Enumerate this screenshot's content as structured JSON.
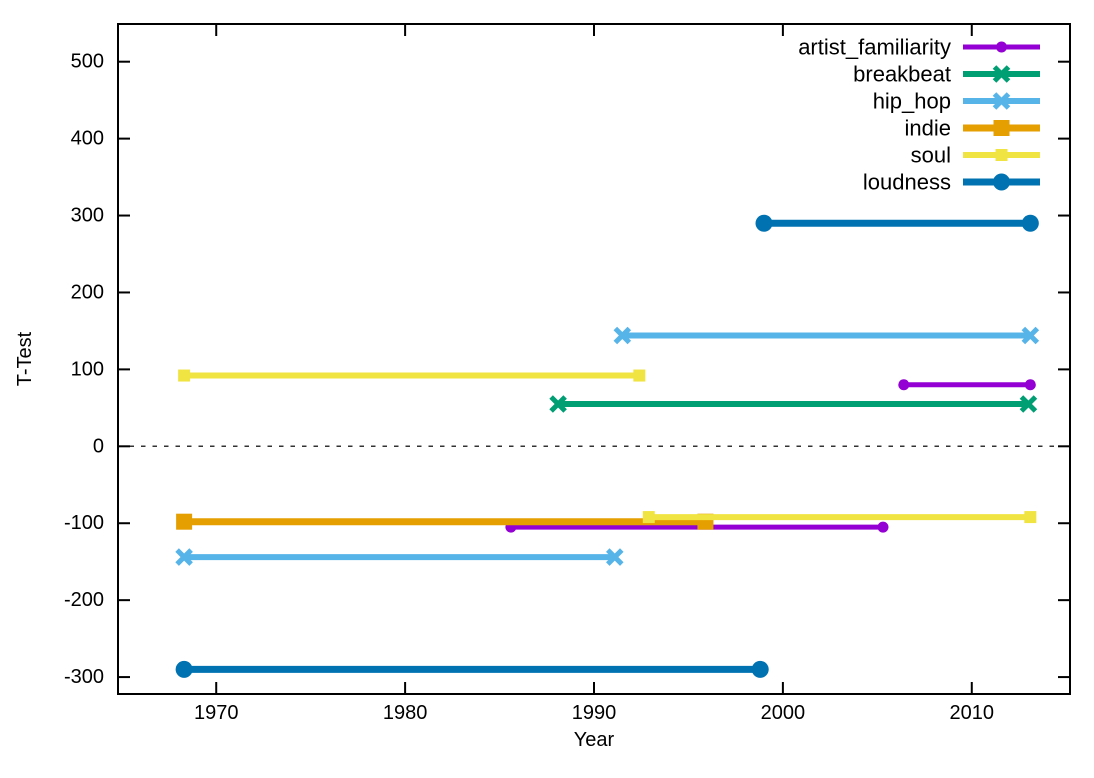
{
  "chart_data": {
    "type": "line",
    "title": "",
    "xlabel": "Year",
    "ylabel": "T-Test",
    "xlim": [
      1964.8,
      2015.2
    ],
    "ylim": [
      -322,
      549
    ],
    "xticks": [
      1970,
      1980,
      1990,
      2000,
      2010
    ],
    "yticks": [
      -300,
      -200,
      -100,
      0,
      100,
      200,
      300,
      400,
      500
    ],
    "grid": false,
    "background": "#ffffff",
    "axis_color": "#000000",
    "zero_line": {
      "show": true,
      "style": "dashed",
      "color": "#333333",
      "y": 0
    },
    "legend": {
      "position": "top-right-inside",
      "entries": [
        "artist_familiarity",
        "breakbeat",
        "hip_hop",
        "indie",
        "soul",
        "loudness"
      ]
    },
    "series": [
      {
        "name": "artist_familiarity",
        "color": "#9400d3",
        "marker": "circle",
        "marker_size": 5.5,
        "line_width": 5,
        "segments": [
          {
            "x_start": 1985.6,
            "x_end": 2005.3,
            "t": -105
          },
          {
            "x_start": 2006.4,
            "x_end": 2013.1,
            "t": 80
          }
        ]
      },
      {
        "name": "breakbeat",
        "color": "#009e73",
        "marker": "x",
        "marker_size": 7,
        "line_width": 6,
        "segments": [
          {
            "x_start": 1988.1,
            "x_end": 2013.0,
            "t": 55
          }
        ]
      },
      {
        "name": "hip_hop",
        "color": "#56b4e9",
        "marker": "x",
        "marker_size": 7,
        "line_width": 6,
        "segments": [
          {
            "x_start": 1968.3,
            "x_end": 1991.1,
            "t": -144
          },
          {
            "x_start": 1991.5,
            "x_end": 2013.1,
            "t": 144
          }
        ]
      },
      {
        "name": "indie",
        "color": "#e69f00",
        "marker": "square",
        "marker_size": 16,
        "line_width": 7,
        "segments": [
          {
            "x_start": 1968.3,
            "x_end": 1995.9,
            "t": -98
          }
        ]
      },
      {
        "name": "soul",
        "color": "#f0e442",
        "marker": "square",
        "marker_size": 12,
        "line_width": 6,
        "segments": [
          {
            "x_start": 1968.3,
            "x_end": 1992.4,
            "t": 92
          },
          {
            "x_start": 1992.9,
            "x_end": 2013.1,
            "t": -92
          }
        ]
      },
      {
        "name": "loudness",
        "color": "#0072b2",
        "marker": "circle",
        "marker_size": 8.5,
        "line_width": 7,
        "segments": [
          {
            "x_start": 1968.3,
            "x_end": 1998.8,
            "t": -290
          },
          {
            "x_start": 1999.0,
            "x_end": 2013.1,
            "t": 290
          }
        ]
      }
    ]
  }
}
